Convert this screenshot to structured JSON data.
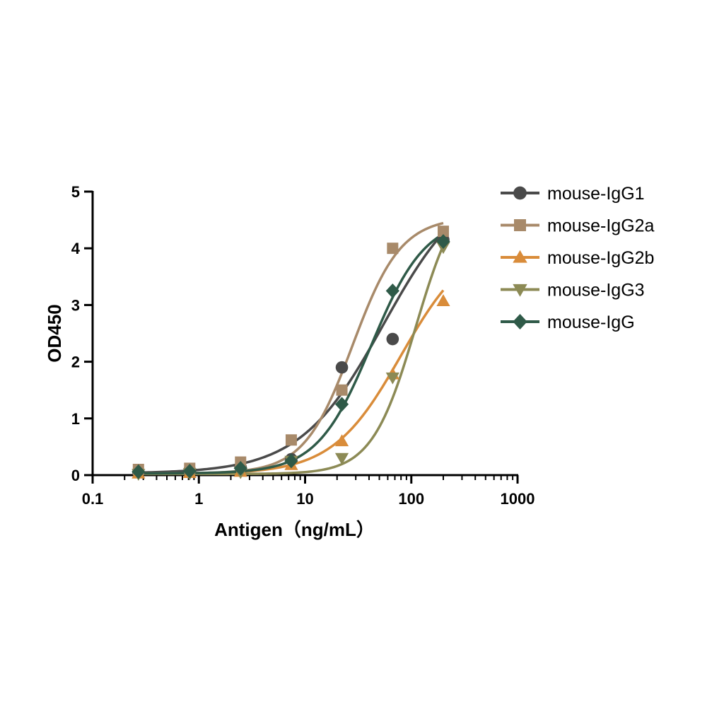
{
  "chart_data": {
    "type": "scatter",
    "xlabel": "Antigen（ng/mL）",
    "ylabel": "OD450",
    "xscale": "log",
    "xlim": [
      0.1,
      1000
    ],
    "ylim": [
      0,
      5
    ],
    "xticks": [
      0.1,
      1,
      10,
      100,
      1000
    ],
    "xtick_labels": [
      "0.1",
      "1",
      "10",
      "100",
      "1000"
    ],
    "yticks": [
      0,
      1,
      2,
      3,
      4,
      5
    ],
    "ytick_labels": [
      "0",
      "1",
      "2",
      "3",
      "4",
      "5"
    ],
    "grid": false,
    "legend_position": "right",
    "x": [
      0.27,
      0.82,
      2.47,
      7.41,
      22.2,
      66.7,
      200
    ],
    "series": [
      {
        "name": "mouse-IgG1",
        "marker": "circle",
        "color": "#4a4a4a",
        "values": [
          0.05,
          0.09,
          0.14,
          0.28,
          1.9,
          2.4,
          4.15
        ],
        "fit": {
          "bottom": 0.03,
          "top": 5.3,
          "ec50": 55,
          "hill": 1.1
        }
      },
      {
        "name": "mouse-IgG2a",
        "marker": "square",
        "color": "#a88a6a",
        "values": [
          0.1,
          0.12,
          0.23,
          0.62,
          1.5,
          4.0,
          4.3
        ],
        "fit": {
          "bottom": 0.03,
          "top": 4.55,
          "ec50": 28,
          "hill": 1.9
        }
      },
      {
        "name": "mouse-IgG2b",
        "marker": "triangle-up",
        "color": "#d98c3a",
        "values": [
          0.03,
          0.04,
          0.06,
          0.18,
          0.6,
          1.78,
          3.07
        ],
        "fit": {
          "bottom": 0.02,
          "top": 4.2,
          "ec50": 80,
          "hill": 1.35
        }
      },
      {
        "name": "mouse-IgG3",
        "marker": "triangle-down",
        "color": "#8c8a55",
        "values": [
          0.02,
          0.03,
          0.05,
          0.25,
          0.3,
          1.72,
          4.02
        ],
        "fit": {
          "bottom": 0.02,
          "top": 5.2,
          "ec50": 110,
          "hill": 2.1
        }
      },
      {
        "name": "mouse-IgG",
        "marker": "diamond",
        "color": "#2f5a48",
        "values": [
          0.06,
          0.07,
          0.12,
          0.25,
          1.25,
          3.25,
          4.12
        ],
        "fit": {
          "bottom": 0.03,
          "top": 4.55,
          "ec50": 42,
          "hill": 1.7
        }
      }
    ]
  }
}
